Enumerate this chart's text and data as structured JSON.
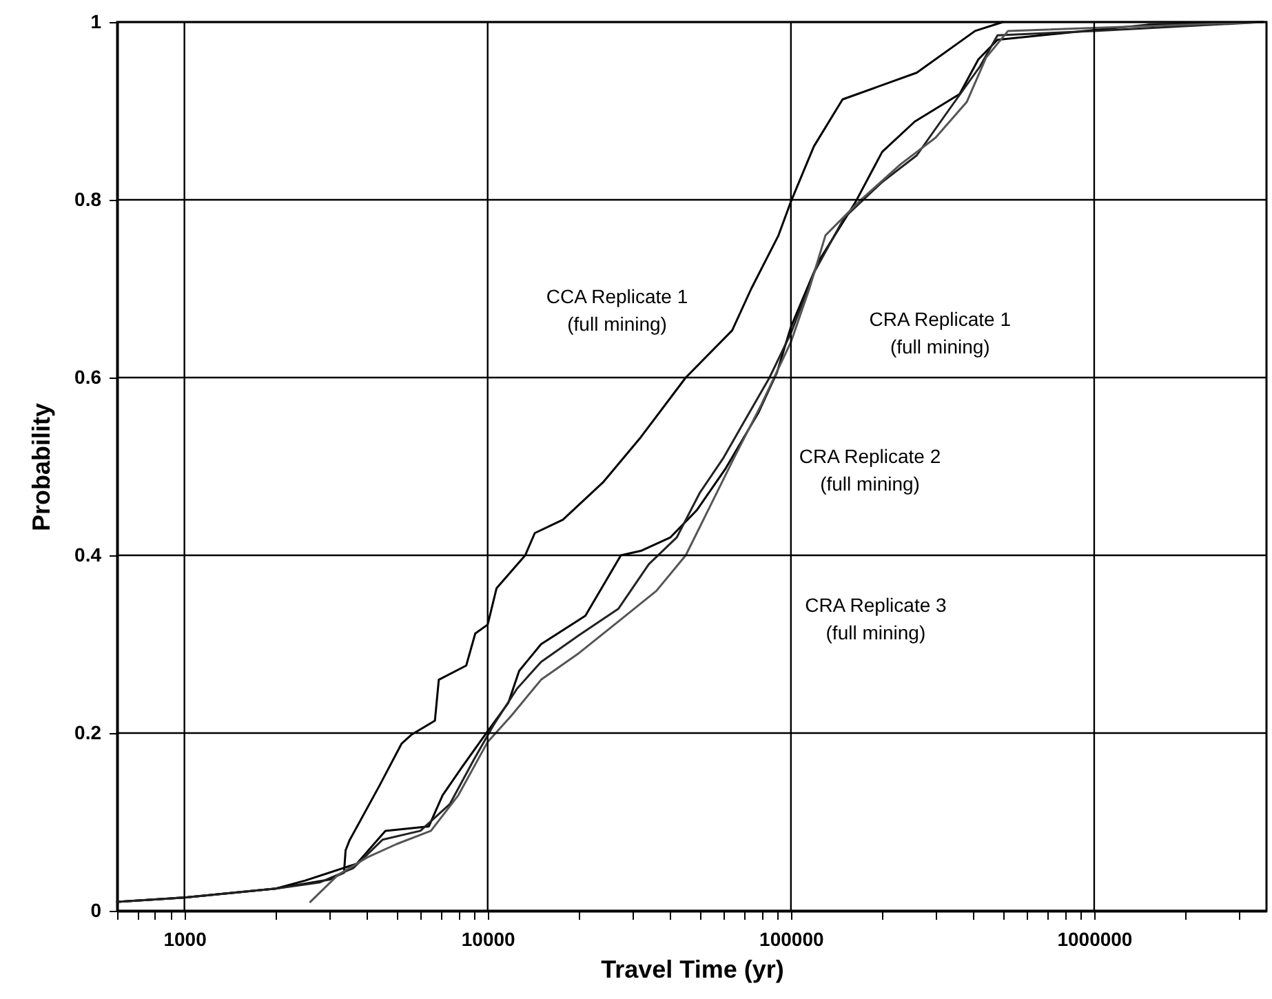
{
  "chart_data": {
    "type": "line",
    "xlabel": "Travel Time (yr)",
    "ylabel": "Probability",
    "log": "x",
    "xlim": [
      600,
      3700000
    ],
    "ylim": [
      0,
      1
    ],
    "xticks": [
      {
        "value": 600,
        "label": null
      },
      {
        "value": 700,
        "label": null
      },
      {
        "value": 800,
        "label": null
      },
      {
        "value": 900,
        "label": null
      },
      1000,
      {
        "value": 2000,
        "label": null
      },
      {
        "value": 3000,
        "label": null
      },
      {
        "value": 4000,
        "label": null
      },
      {
        "value": 5000,
        "label": null
      },
      {
        "value": 6000,
        "label": null
      },
      {
        "value": 7000,
        "label": null
      },
      {
        "value": 8000,
        "label": null
      },
      {
        "value": 9000,
        "label": null
      },
      10000,
      {
        "value": 20000,
        "label": null
      },
      {
        "value": 30000,
        "label": null
      },
      {
        "value": 40000,
        "label": null
      },
      {
        "value": 50000,
        "label": null
      },
      {
        "value": 60000,
        "label": null
      },
      {
        "value": 70000,
        "label": null
      },
      {
        "value": 80000,
        "label": null
      },
      {
        "value": 90000,
        "label": null
      },
      100000,
      {
        "value": 200000,
        "label": null
      },
      {
        "value": 300000,
        "label": null
      },
      {
        "value": 400000,
        "label": null
      },
      {
        "value": 500000,
        "label": null
      },
      {
        "value": 600000,
        "label": null
      },
      {
        "value": 700000,
        "label": null
      },
      {
        "value": 800000,
        "label": null
      },
      {
        "value": 900000,
        "label": null
      },
      1000000,
      {
        "value": 2000000,
        "label": null
      },
      {
        "value": 3000000,
        "label": null
      }
    ],
    "yticks": [
      0,
      0.2,
      0.4,
      0.6,
      0.8,
      1
    ],
    "grid": true,
    "marker": "none",
    "line_style": "solid",
    "series": [
      {
        "color": "#000000",
        "x": [
          600,
          1000,
          2000,
          3000,
          3360,
          3400,
          3500,
          4400,
          5200,
          5600,
          6700,
          6900,
          8500,
          9100,
          10000,
          10700,
          13300,
          14300,
          17700,
          24000,
          32000,
          45000,
          64000,
          74000,
          91000,
          100000,
          119000,
          148000,
          260000,
          405000,
          500000
        ],
        "values": [
          0.01,
          0.015,
          0.025,
          0.035,
          0.043,
          0.068,
          0.079,
          0.141,
          0.188,
          0.198,
          0.214,
          0.26,
          0.276,
          0.312,
          0.322,
          0.363,
          0.4,
          0.425,
          0.44,
          0.482,
          0.533,
          0.6,
          0.653,
          0.7,
          0.76,
          0.798,
          0.86,
          0.913,
          0.943,
          0.99,
          1.0
        ]
      },
      {
        "color": "#000000",
        "x": [
          600,
          1000,
          2000,
          2500,
          3700,
          4600,
          6400,
          7100,
          8200,
          9800,
          11700,
          12700,
          15000,
          21000,
          27500,
          32000,
          40000,
          49000,
          61000,
          78000,
          90000,
          100000,
          123000,
          163000,
          200000,
          256000,
          360000,
          415000,
          480000,
          870000,
          1500000,
          3600000
        ],
        "values": [
          0.01,
          0.015,
          0.025,
          0.034,
          0.053,
          0.09,
          0.095,
          0.13,
          0.161,
          0.198,
          0.234,
          0.27,
          0.3,
          0.332,
          0.4,
          0.405,
          0.42,
          0.451,
          0.498,
          0.56,
          0.606,
          0.657,
          0.73,
          0.797,
          0.854,
          0.888,
          0.919,
          0.958,
          0.98,
          0.989,
          0.997,
          1.0
        ]
      },
      {
        "color": "#222222",
        "x": [
          600,
          1000,
          2000,
          2800,
          3600,
          4500,
          6000,
          7500,
          9000,
          10500,
          12500,
          15000,
          20000,
          27000,
          34000,
          42000,
          50000,
          60000,
          70000,
          85000,
          100000,
          120000,
          150000,
          200000,
          260000,
          330000,
          420000,
          480000,
          1000000,
          3600000
        ],
        "values": [
          0.01,
          0.015,
          0.025,
          0.032,
          0.048,
          0.08,
          0.09,
          0.12,
          0.17,
          0.21,
          0.25,
          0.28,
          0.31,
          0.34,
          0.39,
          0.42,
          0.47,
          0.51,
          0.55,
          0.6,
          0.65,
          0.72,
          0.78,
          0.82,
          0.85,
          0.9,
          0.95,
          0.985,
          0.99,
          1.0
        ]
      },
      {
        "color": "#555555",
        "x": [
          2600,
          3200,
          4000,
          5000,
          6500,
          8000,
          10000,
          12000,
          15000,
          20000,
          28000,
          36000,
          45000,
          55000,
          65000,
          80000,
          100000,
          115000,
          130000,
          170000,
          230000,
          300000,
          380000,
          440000,
          520000,
          3600000
        ],
        "values": [
          0.01,
          0.04,
          0.06,
          0.075,
          0.09,
          0.13,
          0.19,
          0.22,
          0.26,
          0.29,
          0.33,
          0.36,
          0.4,
          0.46,
          0.51,
          0.57,
          0.64,
          0.7,
          0.76,
          0.8,
          0.84,
          0.87,
          0.91,
          0.96,
          0.99,
          1.0
        ]
      }
    ],
    "annotations": [
      "CCA Replicate 1\n(full mining)",
      "CRA Replicate 1\n(full mining)",
      "CRA Replicate 2\n(full mining)",
      "CRA Replicate 3\n(full mining)"
    ]
  }
}
